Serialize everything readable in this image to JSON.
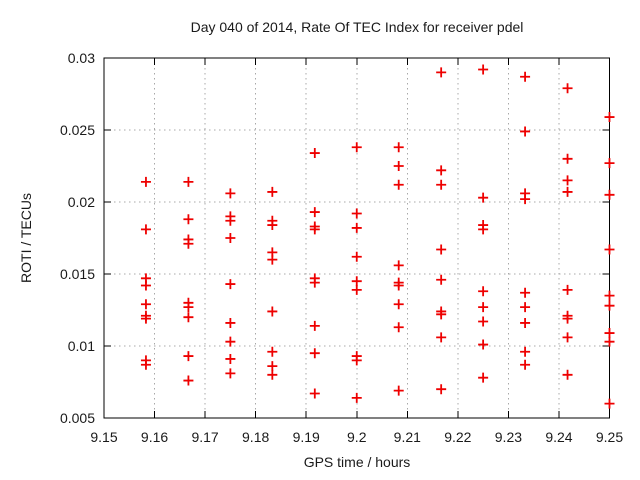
{
  "style": {
    "background": "#ffffff",
    "marker_color": "#ee0000",
    "grid_color": "#a8a8a8",
    "axis_color": "#000000",
    "text_color": "#1a1a1a"
  },
  "chart_data": {
    "type": "scatter",
    "title": "Day 040 of 2014, Rate Of TEC Index for receiver pdel",
    "xlabel": "GPS time / hours",
    "ylabel": "ROTI / TECUs",
    "xlim": [
      9.15,
      9.25
    ],
    "ylim": [
      0.005,
      0.03
    ],
    "grid": true,
    "legend": "none",
    "marker": "plus",
    "xticks": {
      "values": [
        9.15,
        9.16,
        9.17,
        9.18,
        9.19,
        9.2,
        9.21,
        9.22,
        9.23,
        9.24,
        9.25
      ],
      "labels": [
        "9.15",
        "9.16",
        "9.17",
        "9.18",
        "9.19",
        "9.2",
        "9.21",
        "9.22",
        "9.23",
        "9.24",
        "9.25"
      ]
    },
    "yticks": {
      "values": [
        0.005,
        0.01,
        0.015,
        0.02,
        0.025,
        0.03
      ],
      "labels": [
        "0.005",
        "0.01",
        "0.015",
        "0.02",
        "0.025",
        "0.03"
      ]
    },
    "series": [
      {
        "name": "ROTI",
        "points": [
          [
            9.1583,
            0.0214
          ],
          [
            9.1583,
            0.0181
          ],
          [
            9.1583,
            0.0147
          ],
          [
            9.1583,
            0.0142
          ],
          [
            9.1583,
            0.0129
          ],
          [
            9.1583,
            0.0121
          ],
          [
            9.1583,
            0.0119
          ],
          [
            9.1583,
            0.009
          ],
          [
            9.1583,
            0.0087
          ],
          [
            9.1667,
            0.0214
          ],
          [
            9.1667,
            0.0188
          ],
          [
            9.1667,
            0.0174
          ],
          [
            9.1667,
            0.0171
          ],
          [
            9.1667,
            0.013
          ],
          [
            9.1667,
            0.0127
          ],
          [
            9.1667,
            0.012
          ],
          [
            9.1667,
            0.0093
          ],
          [
            9.1667,
            0.0076
          ],
          [
            9.175,
            0.0206
          ],
          [
            9.175,
            0.019
          ],
          [
            9.175,
            0.0187
          ],
          [
            9.175,
            0.0175
          ],
          [
            9.175,
            0.0143
          ],
          [
            9.175,
            0.0116
          ],
          [
            9.175,
            0.0103
          ],
          [
            9.175,
            0.0091
          ],
          [
            9.175,
            0.0081
          ],
          [
            9.1833,
            0.0207
          ],
          [
            9.1833,
            0.0187
          ],
          [
            9.1833,
            0.0184
          ],
          [
            9.1833,
            0.0165
          ],
          [
            9.1833,
            0.016
          ],
          [
            9.1833,
            0.0124
          ],
          [
            9.1833,
            0.0096
          ],
          [
            9.1833,
            0.0086
          ],
          [
            9.1833,
            0.008
          ],
          [
            9.1917,
            0.0234
          ],
          [
            9.1917,
            0.0193
          ],
          [
            9.1917,
            0.0183
          ],
          [
            9.1917,
            0.0181
          ],
          [
            9.1917,
            0.0147
          ],
          [
            9.1917,
            0.0144
          ],
          [
            9.1917,
            0.0114
          ],
          [
            9.1917,
            0.0095
          ],
          [
            9.1917,
            0.0067
          ],
          [
            9.2,
            0.0238
          ],
          [
            9.2,
            0.0192
          ],
          [
            9.2,
            0.0182
          ],
          [
            9.2,
            0.0162
          ],
          [
            9.2,
            0.0145
          ],
          [
            9.2,
            0.0139
          ],
          [
            9.2,
            0.0093
          ],
          [
            9.2,
            0.009
          ],
          [
            9.2,
            0.0064
          ],
          [
            9.2083,
            0.0238
          ],
          [
            9.2083,
            0.0225
          ],
          [
            9.2083,
            0.0212
          ],
          [
            9.2083,
            0.0156
          ],
          [
            9.2083,
            0.0144
          ],
          [
            9.2083,
            0.0142
          ],
          [
            9.2083,
            0.0129
          ],
          [
            9.2083,
            0.0113
          ],
          [
            9.2083,
            0.0069
          ],
          [
            9.2167,
            0.029
          ],
          [
            9.2167,
            0.0222
          ],
          [
            9.2167,
            0.0212
          ],
          [
            9.2167,
            0.0167
          ],
          [
            9.2167,
            0.0146
          ],
          [
            9.2167,
            0.0124
          ],
          [
            9.2167,
            0.0122
          ],
          [
            9.2167,
            0.0106
          ],
          [
            9.2167,
            0.007
          ],
          [
            9.225,
            0.0292
          ],
          [
            9.225,
            0.0203
          ],
          [
            9.225,
            0.0184
          ],
          [
            9.225,
            0.0181
          ],
          [
            9.225,
            0.0138
          ],
          [
            9.225,
            0.0127
          ],
          [
            9.225,
            0.0117
          ],
          [
            9.225,
            0.0101
          ],
          [
            9.225,
            0.0078
          ],
          [
            9.2333,
            0.0287
          ],
          [
            9.2333,
            0.0249
          ],
          [
            9.2333,
            0.0206
          ],
          [
            9.2333,
            0.0202
          ],
          [
            9.2333,
            0.0137
          ],
          [
            9.2333,
            0.0127
          ],
          [
            9.2333,
            0.0116
          ],
          [
            9.2333,
            0.0096
          ],
          [
            9.2333,
            0.0087
          ],
          [
            9.2417,
            0.0279
          ],
          [
            9.2417,
            0.023
          ],
          [
            9.2417,
            0.0215
          ],
          [
            9.2417,
            0.0207
          ],
          [
            9.2417,
            0.0139
          ],
          [
            9.2417,
            0.0121
          ],
          [
            9.2417,
            0.0119
          ],
          [
            9.2417,
            0.0106
          ],
          [
            9.2417,
            0.008
          ],
          [
            9.25,
            0.0259
          ],
          [
            9.25,
            0.0227
          ],
          [
            9.25,
            0.0205
          ],
          [
            9.25,
            0.0167
          ],
          [
            9.25,
            0.0135
          ],
          [
            9.25,
            0.0128
          ],
          [
            9.25,
            0.0109
          ],
          [
            9.25,
            0.0103
          ],
          [
            9.25,
            0.006
          ]
        ]
      }
    ]
  }
}
